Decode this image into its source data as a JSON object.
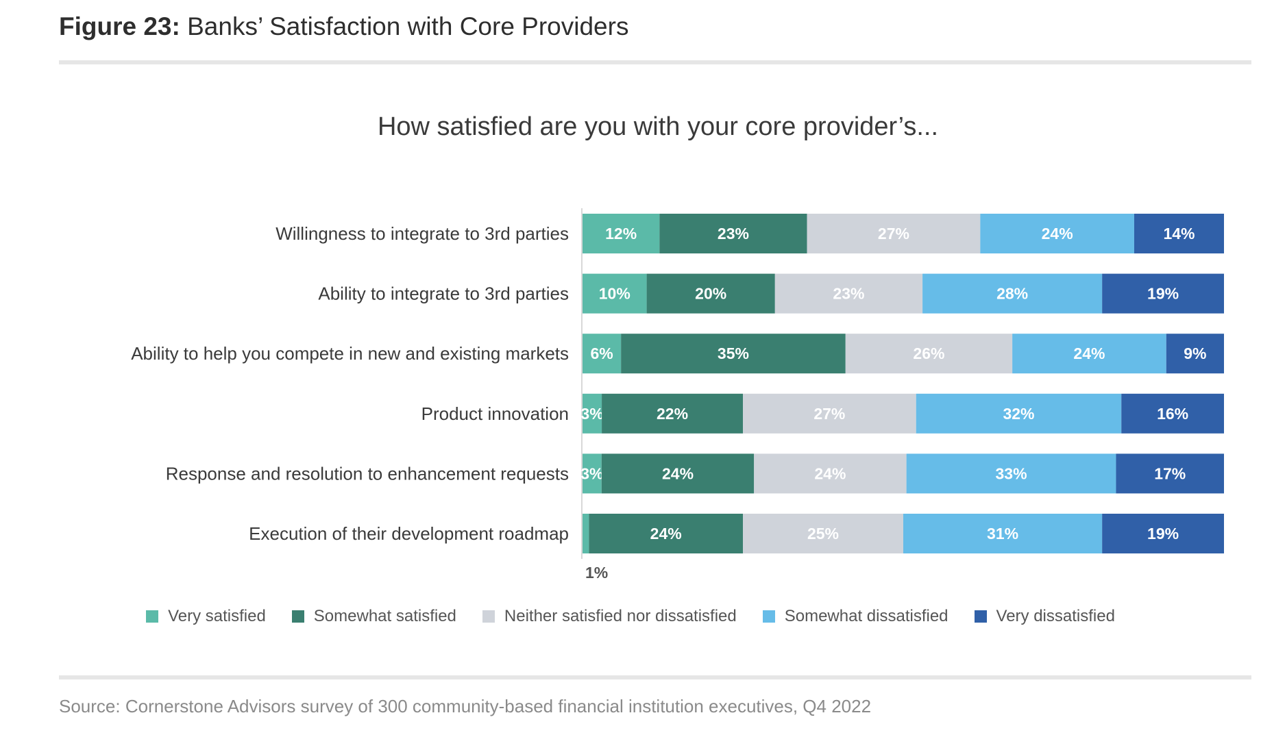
{
  "figure": {
    "label": "Figure 23:",
    "title": "Banks’ Satisfaction with Core Providers",
    "source": "Source: Cornerstone Advisors survey of 300 community-based financial institution executives, Q4 2022"
  },
  "chart_data": {
    "type": "bar",
    "orientation": "horizontal",
    "stacked": true,
    "title": "How satisfied are you with your core provider’s...",
    "xlabel": "",
    "ylabel": "",
    "xlim": [
      0,
      100
    ],
    "grid": false,
    "legend_position": "bottom",
    "categories": [
      "Willingness to integrate to 3rd parties",
      "Ability to integrate to 3rd parties",
      "Ability to help you compete in new and existing markets",
      "Product innovation",
      "Response and resolution to enhancement requests",
      "Execution of their development roadmap"
    ],
    "series": [
      {
        "name": "Very satisfied",
        "color": "#5bbaa8",
        "values": [
          12,
          10,
          6,
          3,
          3,
          1
        ]
      },
      {
        "name": "Somewhat satisfied",
        "color": "#3a7f70",
        "values": [
          23,
          20,
          35,
          22,
          24,
          24
        ]
      },
      {
        "name": "Neither satisfied nor dissatisfied",
        "color": "#cfd3da",
        "values": [
          27,
          23,
          26,
          27,
          24,
          25
        ]
      },
      {
        "name": "Somewhat dissatisfied",
        "color": "#66bce8",
        "values": [
          24,
          28,
          24,
          32,
          33,
          31
        ]
      },
      {
        "name": "Very dissatisfied",
        "color": "#3060a8",
        "values": [
          14,
          19,
          9,
          16,
          17,
          19
        ]
      }
    ],
    "annotations": [
      {
        "text": "1%",
        "category": "Execution of their development roadmap",
        "series": "Very satisfied",
        "placement": "below bar"
      }
    ]
  }
}
